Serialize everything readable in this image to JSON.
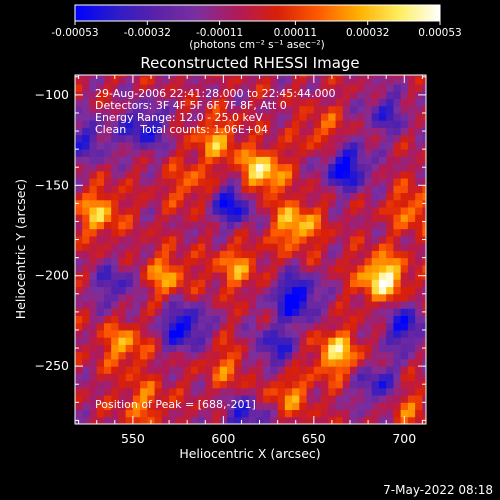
{
  "colorbar": {
    "tick_labels": [
      "-0.00053",
      "-0.00032",
      "-0.00011",
      "0.00011",
      "0.00032",
      "0.00053"
    ],
    "range": [
      -0.00053,
      0.00053
    ],
    "unit_label": "(photons cm⁻² s⁻¹ asec⁻²)",
    "colors": [
      "#0000ff",
      "#2b1cc8",
      "#5a22a8",
      "#7b2fa0",
      "#b01a5a",
      "#d8200a",
      "#ff5a00",
      "#ffb000",
      "#ffee60",
      "#ffffff"
    ]
  },
  "chart_data": {
    "type": "heatmap",
    "title": "Reconstructed RHESSI Image",
    "xlabel": "Heliocentric X (arcsec)",
    "ylabel": "Heliocentric Y (arcsec)",
    "xlim": [
      518,
      712
    ],
    "ylim": [
      -282,
      -89
    ],
    "x_ticks": [
      550,
      600,
      650,
      700
    ],
    "x_tick_labels": [
      "550",
      "600",
      "650",
      "700"
    ],
    "y_ticks": [
      -100,
      -150,
      -200,
      -250
    ],
    "y_tick_labels": [
      "−100",
      "−150",
      "−200",
      "−250"
    ],
    "peak": [
      688,
      -201
    ],
    "hotspots": [
      {
        "x": 688,
        "y": -201,
        "value": 0.00053
      },
      {
        "x": 621,
        "y": -143,
        "value": 0.00048
      },
      {
        "x": 596,
        "y": -125,
        "value": 0.0003
      },
      {
        "x": 531,
        "y": -165,
        "value": 0.00035
      },
      {
        "x": 640,
        "y": -172,
        "value": 0.0004
      },
      {
        "x": 568,
        "y": -200,
        "value": 0.0003
      },
      {
        "x": 607,
        "y": -195,
        "value": 0.00028
      },
      {
        "x": 545,
        "y": -238,
        "value": 0.0003
      },
      {
        "x": 663,
        "y": -243,
        "value": 0.00042
      },
      {
        "x": 636,
        "y": -265,
        "value": 0.00026
      },
      {
        "x": 705,
        "y": -163,
        "value": 0.00026
      },
      {
        "x": 582,
        "y": -150,
        "value": 0.00022
      },
      {
        "x": 702,
        "y": -272,
        "value": 0.0002
      },
      {
        "x": 655,
        "y": -120,
        "value": 0.0002
      },
      {
        "x": 556,
        "y": -270,
        "value": 0.00024
      },
      {
        "x": 603,
        "y": -250,
        "value": 0.00022
      }
    ],
    "coldspots": [
      {
        "x": 556,
        "y": -118,
        "value": -0.0004
      },
      {
        "x": 605,
        "y": -160,
        "value": -0.00045
      },
      {
        "x": 668,
        "y": -140,
        "value": -0.0005
      },
      {
        "x": 578,
        "y": -228,
        "value": -0.00048
      },
      {
        "x": 640,
        "y": -212,
        "value": -0.00053
      },
      {
        "x": 700,
        "y": -228,
        "value": -0.0004
      },
      {
        "x": 628,
        "y": -240,
        "value": -0.00035
      },
      {
        "x": 685,
        "y": -260,
        "value": -0.00035
      },
      {
        "x": 525,
        "y": -125,
        "value": -0.0003
      },
      {
        "x": 612,
        "y": -278,
        "value": -0.00035
      },
      {
        "x": 690,
        "y": -110,
        "value": -0.0003
      },
      {
        "x": 540,
        "y": -205,
        "value": -0.0003
      }
    ]
  },
  "annotations": {
    "time_range": "29-Aug-2006 22:41:28.000 to 22:45:44.000",
    "detectors": "Detectors: 3F 4F 5F 6F 7F 8F, Att 0",
    "energy_range": "Energy Range: 12.0 - 25.0 keV",
    "method_counts": "Clean    Total counts: 1.06E+04",
    "peak_label": "Position of Peak = [688,-201]"
  },
  "footer": {
    "timestamp": "7-May-2022 08:18"
  }
}
